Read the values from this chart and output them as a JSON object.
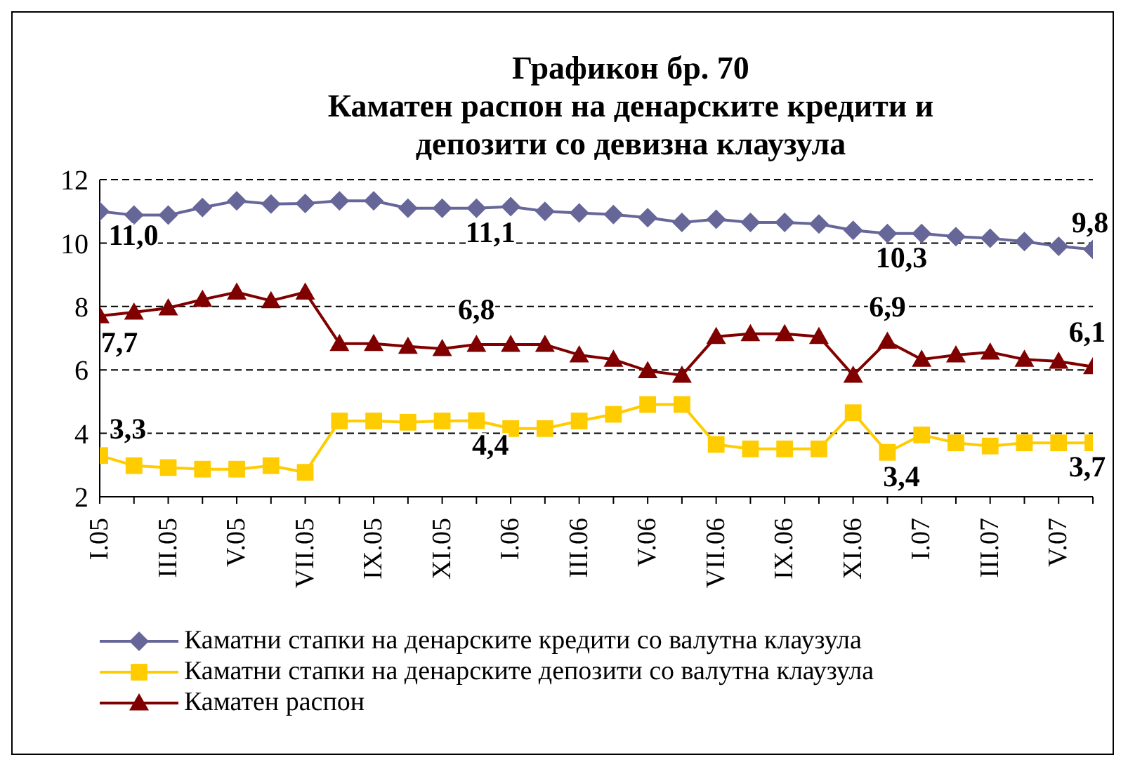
{
  "chart_data": {
    "type": "line",
    "title": "Графикон бр. 70",
    "subtitle": "Каматен распон на денарските кредити и депозити со девизна клаузула",
    "categories": [
      "I.05",
      null,
      "III.05",
      null,
      "V.05",
      null,
      "VII.05",
      null,
      "IX.05",
      null,
      "XI.05",
      null,
      "I.06",
      null,
      "III.06",
      null,
      "V.06",
      null,
      "VII.06",
      null,
      "IX.06",
      null,
      "XI.06",
      null,
      "I.07",
      null,
      "III.07",
      null,
      "V.07",
      null
    ],
    "series": [
      {
        "name": "Каматни стапки на денарските кредити со валутна клаузула",
        "color": "#666699",
        "marker": "diamond",
        "values": [
          11.0,
          10.88,
          10.88,
          11.12,
          11.33,
          11.23,
          11.25,
          11.33,
          11.33,
          11.1,
          11.1,
          11.1,
          11.15,
          11.0,
          10.95,
          10.9,
          10.8,
          10.65,
          10.75,
          10.65,
          10.65,
          10.6,
          10.4,
          10.3,
          10.3,
          10.2,
          10.15,
          10.05,
          9.9,
          9.8
        ],
        "value_labels": [
          "11,0",
          null,
          null,
          null,
          null,
          null,
          null,
          null,
          null,
          null,
          null,
          "11,1",
          null,
          null,
          null,
          null,
          null,
          null,
          null,
          null,
          null,
          null,
          null,
          "10,3",
          null,
          null,
          null,
          null,
          null,
          "9,8"
        ]
      },
      {
        "name": "Каматни стапки на денарските депозити со валутна клаузула",
        "color": "#ffcc00",
        "marker": "square",
        "values": [
          3.3,
          2.98,
          2.92,
          2.87,
          2.87,
          2.98,
          2.77,
          4.39,
          4.39,
          4.35,
          4.39,
          4.4,
          4.15,
          4.15,
          4.39,
          4.6,
          4.91,
          4.91,
          3.65,
          3.51,
          3.51,
          3.51,
          4.65,
          3.4,
          3.95,
          3.7,
          3.6,
          3.7,
          3.7,
          3.7
        ],
        "value_labels": [
          "3,3",
          null,
          null,
          null,
          null,
          null,
          null,
          null,
          null,
          null,
          null,
          "4,4",
          null,
          null,
          null,
          null,
          null,
          null,
          null,
          null,
          null,
          null,
          null,
          "3,4",
          null,
          null,
          null,
          null,
          null,
          "3,7"
        ]
      },
      {
        "name": "Каматен распон",
        "color": "#800000",
        "marker": "triangle",
        "values": [
          7.7,
          7.82,
          7.95,
          8.22,
          8.45,
          8.18,
          8.45,
          6.83,
          6.83,
          6.74,
          6.67,
          6.8,
          6.8,
          6.8,
          6.47,
          6.33,
          5.97,
          5.83,
          7.05,
          7.14,
          7.14,
          7.05,
          5.83,
          6.9,
          6.33,
          6.47,
          6.56,
          6.33,
          6.27,
          6.1
        ],
        "value_labels": [
          "7,7",
          null,
          null,
          null,
          null,
          null,
          null,
          null,
          null,
          null,
          null,
          "6,8",
          null,
          null,
          null,
          null,
          null,
          null,
          null,
          null,
          null,
          null,
          null,
          "6,9",
          null,
          null,
          null,
          null,
          null,
          "6,1"
        ]
      }
    ],
    "ylim": [
      2,
      12
    ],
    "yticks": [
      2,
      4,
      6,
      8,
      10,
      12
    ],
    "grid": "y",
    "legend": "bottom",
    "line_style": "solid"
  }
}
